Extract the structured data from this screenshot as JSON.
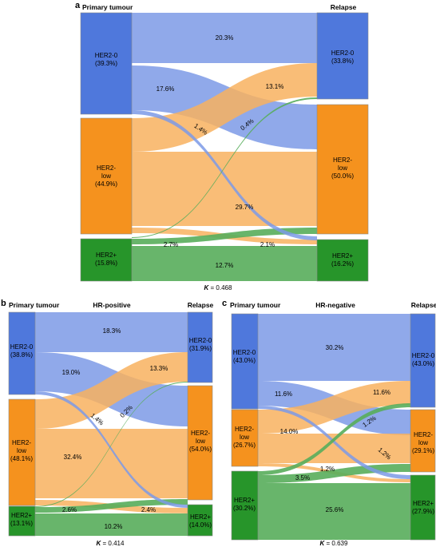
{
  "colors": {
    "her2_0": "#4f78dc",
    "her2_0_flow": "#7d9ae6",
    "her2_low": "#f5921e",
    "her2_low_flow": "#f8b25f",
    "her2_pos": "#27952a",
    "her2_pos_flow": "#58ad5b",
    "stroke": "#8a8a8a"
  },
  "panel_a": {
    "letter": "a",
    "left_title": "Primary tumour",
    "right_title": "Relapse",
    "subtitle": "",
    "left_nodes": [
      {
        "line1": "HER2-0",
        "line2": "(39.3%)"
      },
      {
        "line1": "HER2-",
        "line2": "low",
        "line3": "(44.9%)"
      },
      {
        "line1": "HER2+",
        "line2": "(15.8%)"
      }
    ],
    "right_nodes": [
      {
        "line1": "HER2-0",
        "line2": "(33.8%)"
      },
      {
        "line1": "HER2-",
        "line2": "low",
        "line3": "(50.0%)"
      },
      {
        "line1": "HER2+",
        "line2": "(16.2%)"
      }
    ],
    "flow_labels": [
      "20.3%",
      "17.6%",
      "1.4%",
      "13.1%",
      "0.4%",
      "29.7%",
      "2.7%",
      "2.1%",
      "12.7%"
    ],
    "kappa_sym": "K",
    "kappa_val": " = 0.468"
  },
  "panel_b": {
    "letter": "b",
    "left_title": "Primary tumour",
    "right_title": "Relapse",
    "subtitle": "HR-positive",
    "left_nodes": [
      {
        "line1": "HER2-0",
        "line2": "(38.8%)"
      },
      {
        "line1": "HER2-",
        "line2": "low",
        "line3": "(48.1%)"
      },
      {
        "line1": "HER2+",
        "line2": "(13.1%)"
      }
    ],
    "right_nodes": [
      {
        "line1": "HER2-0",
        "line2": "(31.9%)"
      },
      {
        "line1": "HER2-",
        "line2": "low",
        "line3": "(54.0%)"
      },
      {
        "line1": "HER2+",
        "line2": "(14.0%)"
      }
    ],
    "flow_labels": [
      "18.3%",
      "19.0%",
      "1.4%",
      "13.3%",
      "0.2%",
      "32.4%",
      "2.6%",
      "2.4%",
      "10.2%"
    ],
    "kappa_sym": "K",
    "kappa_val": " = 0.414"
  },
  "panel_c": {
    "letter": "c",
    "left_title": "Primary tumour",
    "right_title": "Relapse",
    "subtitle": "HR-negative",
    "left_nodes": [
      {
        "line1": "HER2-0",
        "line2": "(43.0%)"
      },
      {
        "line1": "HER2-",
        "line2": "low",
        "line3": "(26.7%)"
      },
      {
        "line1": "HER2+",
        "line2": "(30.2%)"
      }
    ],
    "right_nodes": [
      {
        "line1": "HER2-0",
        "line2": "(43.0%)"
      },
      {
        "line1": "HER2-",
        "line2": "low",
        "line3": "(29.1%)"
      },
      {
        "line1": "HER2+",
        "line2": "(27.9%)"
      }
    ],
    "flow_labels": [
      "30.2%",
      "11.6%",
      "1.2%",
      "11.6%",
      "1.2%",
      "14.0%",
      "3.5%",
      "1.2%",
      "25.6%"
    ],
    "kappa_sym": "K",
    "kappa_val": " = 0.639"
  }
}
